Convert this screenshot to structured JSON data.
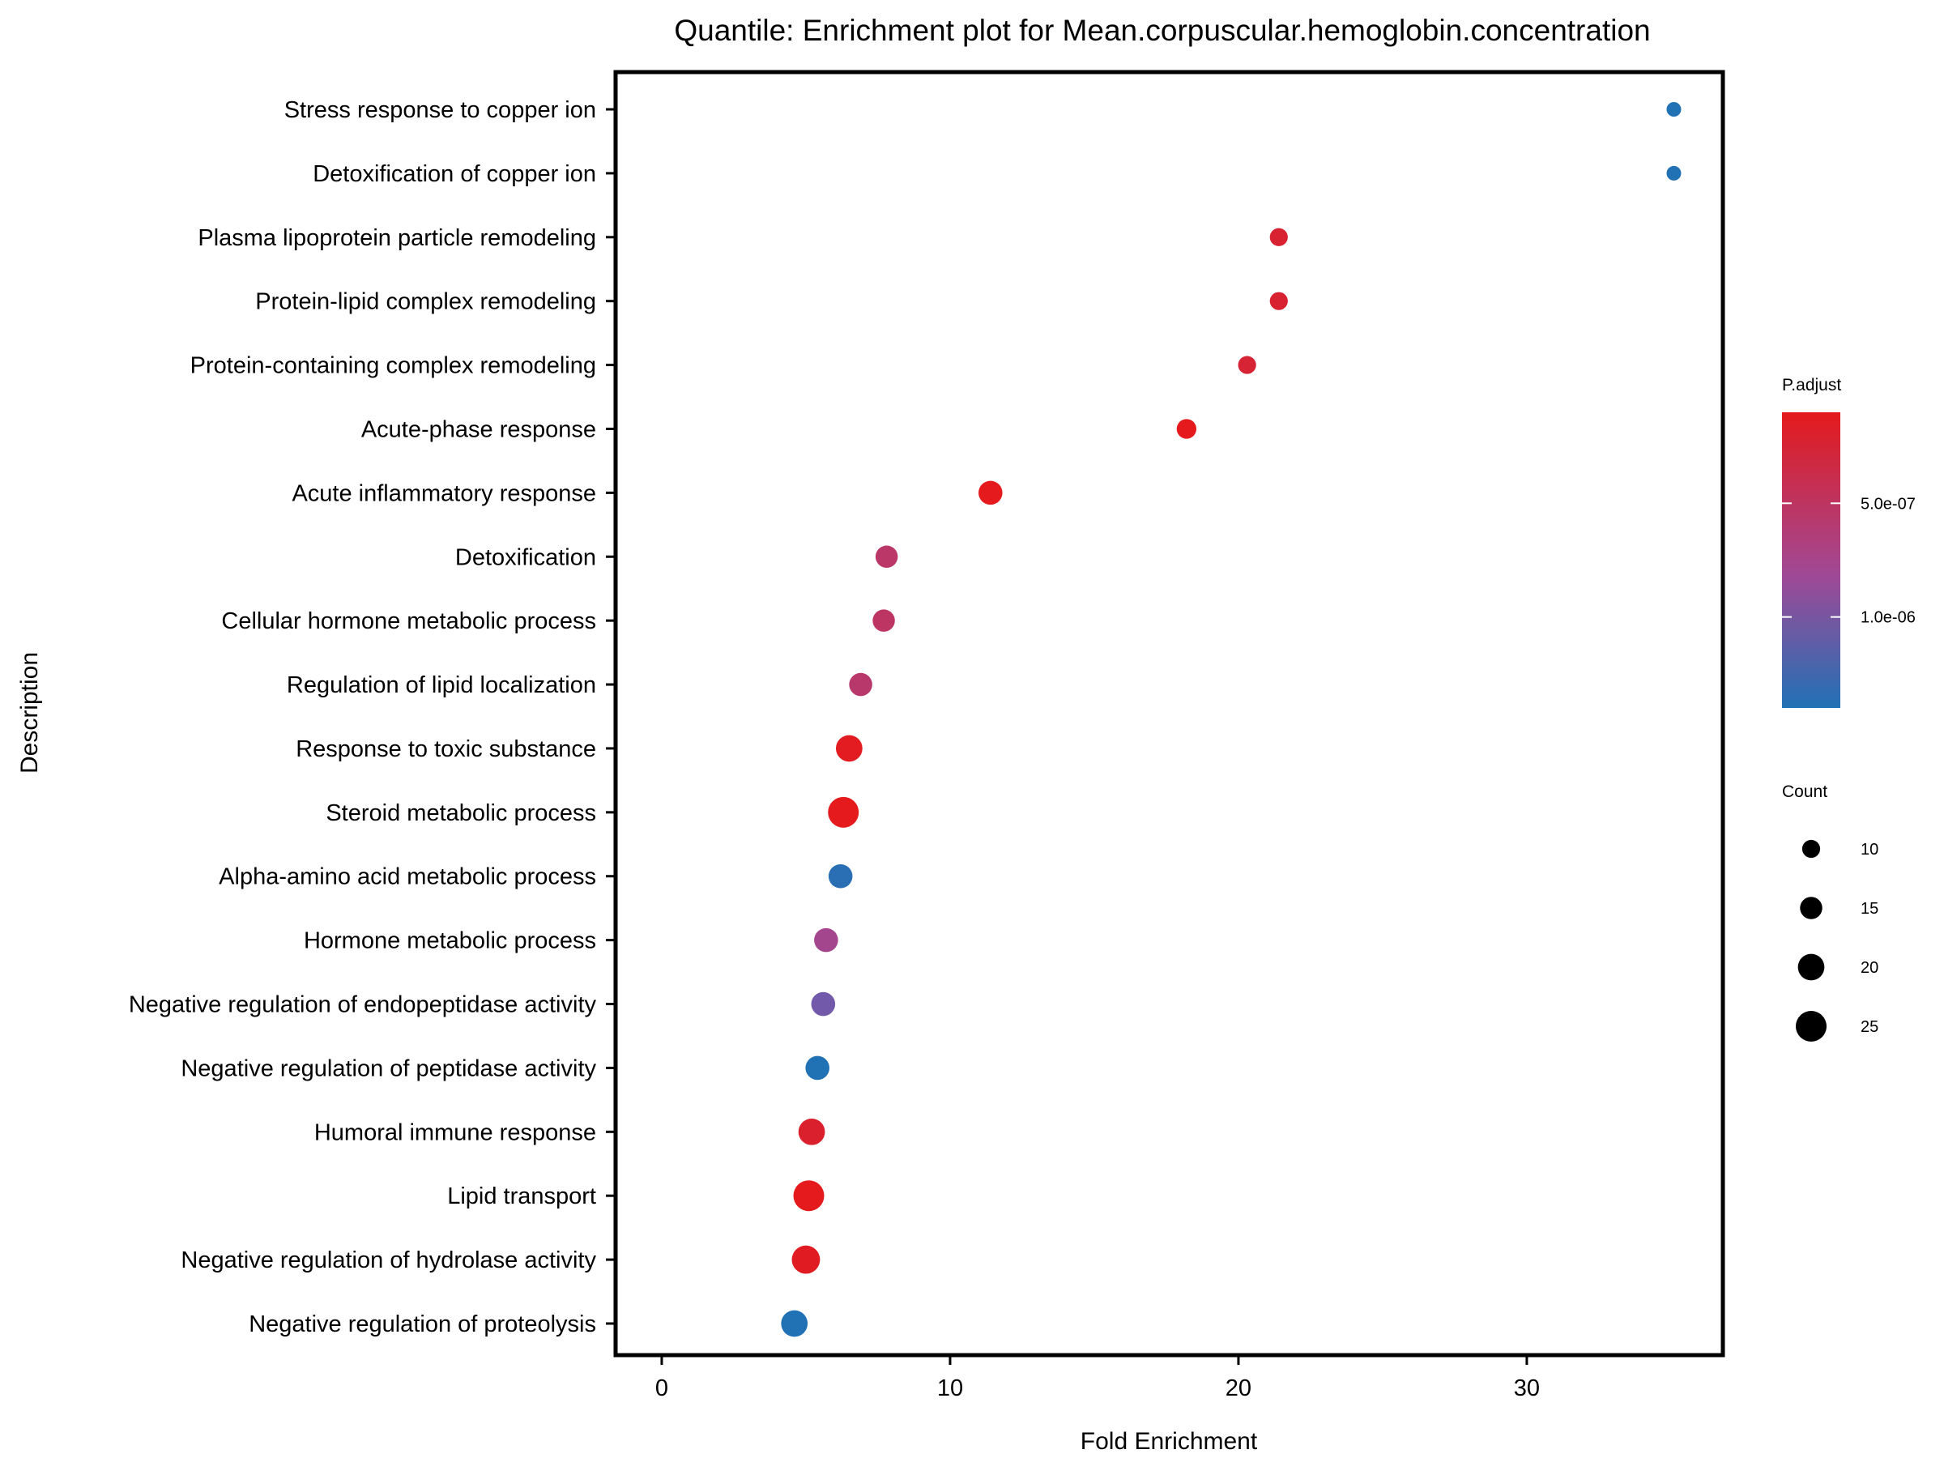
{
  "chart_data": {
    "type": "scatter",
    "title": "Quantile: Enrichment plot for Mean.corpuscular.hemoglobin.concentration",
    "xlabel": "Fold Enrichment",
    "ylabel": "Description",
    "xlim": [
      -1.6,
      36.8
    ],
    "xticks": [
      0,
      10,
      20,
      30
    ],
    "grid": false,
    "points": [
      {
        "label": "Stress response to copper ion",
        "x": 35.1,
        "count": 6,
        "p_adjust": 1.4e-06
      },
      {
        "label": "Detoxification of copper ion",
        "x": 35.1,
        "count": 6,
        "p_adjust": 1.4e-06
      },
      {
        "label": "Plasma lipoprotein particle remodeling",
        "x": 21.4,
        "count": 10,
        "p_adjust": 2e-07
      },
      {
        "label": "Protein-lipid complex remodeling",
        "x": 21.4,
        "count": 10,
        "p_adjust": 2e-07
      },
      {
        "label": "Protein-containing complex remodeling",
        "x": 20.3,
        "count": 10,
        "p_adjust": 2.2e-07
      },
      {
        "label": "Acute-phase response",
        "x": 18.2,
        "count": 12,
        "p_adjust": 1e-07
      },
      {
        "label": "Acute inflammatory response",
        "x": 11.4,
        "count": 17,
        "p_adjust": 1e-07
      },
      {
        "label": "Detoxification",
        "x": 7.8,
        "count": 15,
        "p_adjust": 4.6e-07
      },
      {
        "label": "Cellular hormone metabolic process",
        "x": 7.7,
        "count": 15,
        "p_adjust": 4.4e-07
      },
      {
        "label": "Regulation of lipid localization",
        "x": 6.9,
        "count": 16,
        "p_adjust": 4.8e-07
      },
      {
        "label": "Response to toxic substance",
        "x": 6.5,
        "count": 20,
        "p_adjust": 1.2e-07
      },
      {
        "label": "Steroid metabolic process",
        "x": 6.3,
        "count": 25,
        "p_adjust": 1e-07
      },
      {
        "label": "Alpha-amino acid metabolic process",
        "x": 6.2,
        "count": 17,
        "p_adjust": 1.35e-06
      },
      {
        "label": "Hormone metabolic process",
        "x": 5.7,
        "count": 17,
        "p_adjust": 6.5e-07
      },
      {
        "label": "Negative regulation of endopeptidase activity",
        "x": 5.6,
        "count": 17,
        "p_adjust": 9.5e-07
      },
      {
        "label": "Negative regulation of peptidase activity",
        "x": 5.4,
        "count": 17,
        "p_adjust": 1.4e-06
      },
      {
        "label": "Humoral immune response",
        "x": 5.2,
        "count": 20,
        "p_adjust": 1.8e-07
      },
      {
        "label": "Lipid transport",
        "x": 5.1,
        "count": 25,
        "p_adjust": 1e-07
      },
      {
        "label": "Negative regulation of hydrolase activity",
        "x": 5.0,
        "count": 22,
        "p_adjust": 1.3e-07
      },
      {
        "label": "Negative regulation of proteolysis",
        "x": 4.6,
        "count": 20,
        "p_adjust": 1.4e-06
      }
    ],
    "color_legend": {
      "title": "P.adjust",
      "ticks": [
        {
          "label": "5.0e-07",
          "value": 5e-07
        },
        {
          "label": "1.0e-06",
          "value": 1e-06
        }
      ],
      "range": [
        1e-07,
        1.4e-06
      ],
      "low_color": "#e41a1c",
      "mid_color": "#984ea3",
      "high_color": "#2171b5",
      "placement": "right"
    },
    "size_legend": {
      "title": "Count",
      "entries": [
        10,
        15,
        20,
        25
      ],
      "placement": "right"
    }
  }
}
